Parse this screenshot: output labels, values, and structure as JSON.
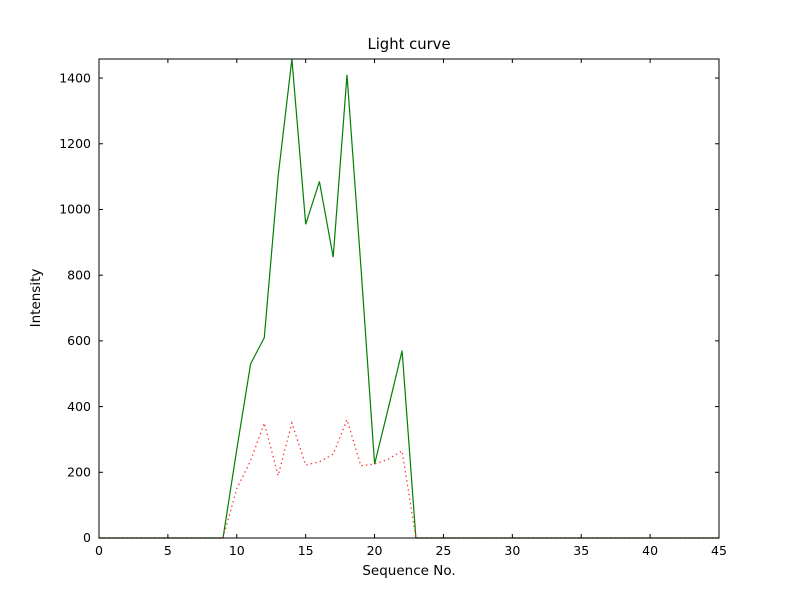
{
  "figure": {
    "background": "#ffffff",
    "axes_color": "#000000"
  },
  "chart_data": {
    "type": "line",
    "title": "Light curve",
    "xlabel": "Sequence No.",
    "ylabel": "Intensity",
    "xlim": [
      0,
      45
    ],
    "ylim": [
      0,
      1458
    ],
    "xticks": [
      0,
      5,
      10,
      15,
      20,
      25,
      30,
      35,
      40,
      45
    ],
    "yticks": [
      0,
      200,
      400,
      600,
      800,
      1000,
      1200,
      1400
    ],
    "grid": false,
    "legend": "none",
    "x": [
      0,
      1,
      2,
      3,
      4,
      5,
      6,
      7,
      8,
      9,
      10,
      11,
      12,
      13,
      14,
      15,
      16,
      17,
      18,
      19,
      20,
      21,
      22,
      23,
      24,
      25,
      26,
      27,
      28,
      29,
      30,
      31,
      32,
      33,
      34,
      35,
      36,
      37,
      38,
      39,
      40,
      41,
      42,
      43,
      44,
      45
    ],
    "series": [
      {
        "name": "intensity-solid-green",
        "color": "#007f00",
        "style": "solid",
        "values": [
          0,
          0,
          0,
          0,
          0,
          0,
          0,
          0,
          0,
          0,
          270,
          530,
          610,
          1100,
          1458,
          955,
          1085,
          855,
          1410,
          830,
          225,
          395,
          570,
          0,
          0,
          0,
          0,
          0,
          0,
          0,
          0,
          0,
          0,
          0,
          0,
          0,
          0,
          0,
          0,
          0,
          0,
          0,
          0,
          0,
          0,
          0
        ]
      },
      {
        "name": "intensity-dotted-red",
        "color": "#ff3333",
        "style": "dotted",
        "values": [
          0,
          0,
          0,
          0,
          0,
          0,
          0,
          0,
          0,
          0,
          150,
          235,
          350,
          190,
          350,
          222,
          232,
          255,
          360,
          220,
          225,
          240,
          265,
          0,
          0,
          0,
          0,
          0,
          0,
          0,
          0,
          0,
          0,
          0,
          0,
          0,
          0,
          0,
          0,
          0,
          0,
          0,
          0,
          0,
          0,
          0
        ]
      }
    ]
  }
}
